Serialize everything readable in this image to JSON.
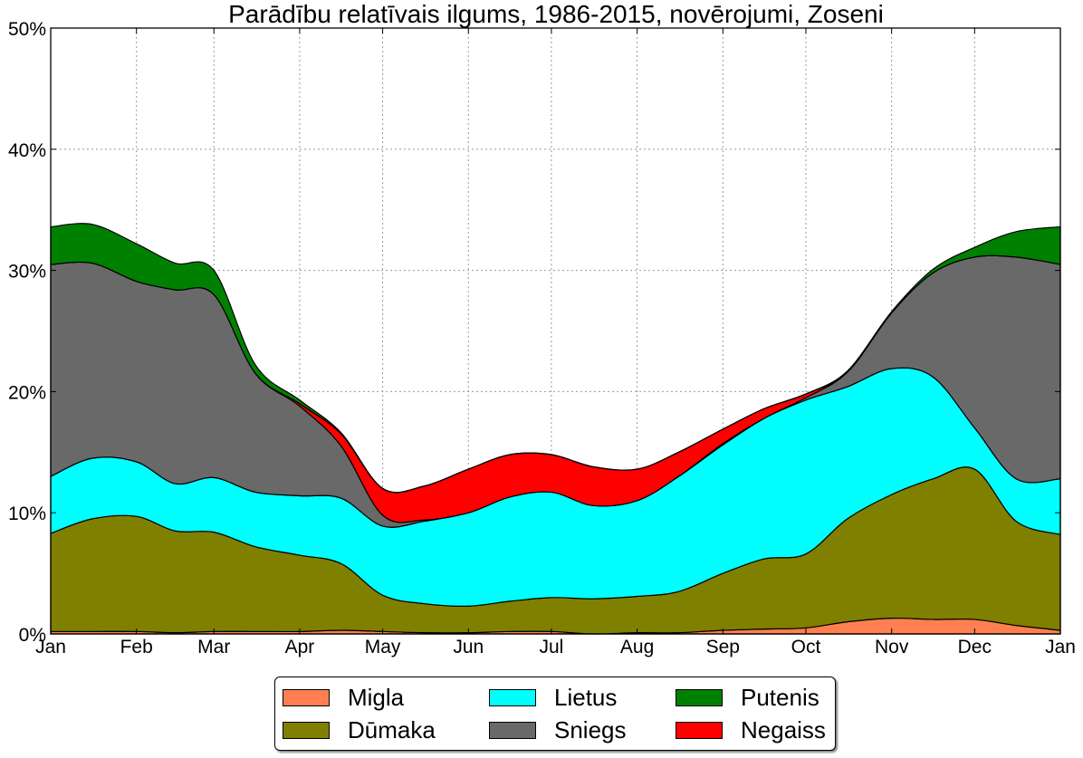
{
  "chart_data": {
    "type": "area",
    "stacked": true,
    "title": "Parādību relatīvais ilgums, 1986-2015, novērojumi, Zoseni",
    "xlabel": "",
    "ylabel": "",
    "ylim": [
      0,
      50
    ],
    "yticks": [
      "0%",
      "10%",
      "20%",
      "30%",
      "40%",
      "50%"
    ],
    "ytick_values": [
      0,
      10,
      20,
      30,
      40,
      50
    ],
    "xticks": [
      "Jan",
      "Feb",
      "Mar",
      "Apr",
      "May",
      "Jun",
      "Jul",
      "Aug",
      "Sep",
      "Oct",
      "Nov",
      "Dec",
      "Jan"
    ],
    "xtick_days": [
      0,
      31,
      59,
      90,
      120,
      151,
      181,
      212,
      243,
      273,
      304,
      334,
      365
    ],
    "xlim_days": [
      0,
      365
    ],
    "grid": true,
    "legend_position": "bottom-center-outside",
    "x_days": [
      0,
      15,
      31,
      45,
      59,
      74,
      90,
      105,
      120,
      135,
      151,
      166,
      181,
      196,
      212,
      227,
      243,
      258,
      273,
      288,
      304,
      319,
      334,
      349,
      365
    ],
    "series": [
      {
        "name": "Migla",
        "color": "#ff7f50",
        "values": [
          0.2,
          0.2,
          0.2,
          0.1,
          0.2,
          0.2,
          0.2,
          0.3,
          0.2,
          0.1,
          0.1,
          0.2,
          0.2,
          0.0,
          0.1,
          0.1,
          0.3,
          0.4,
          0.5,
          1.0,
          1.3,
          1.2,
          1.2,
          0.7,
          0.3
        ]
      },
      {
        "name": "Dūmaka",
        "color": "#808000",
        "values": [
          8.1,
          9.3,
          9.5,
          8.4,
          8.2,
          7.0,
          6.3,
          5.5,
          3.0,
          2.4,
          2.2,
          2.5,
          2.8,
          2.9,
          3.0,
          3.4,
          4.7,
          5.8,
          6.1,
          8.5,
          10.2,
          11.6,
          12.4,
          8.6,
          7.9
        ]
      },
      {
        "name": "Lietus",
        "color": "#00ffff",
        "values": [
          4.7,
          5.0,
          4.5,
          3.9,
          4.5,
          4.5,
          4.9,
          5.4,
          5.7,
          6.8,
          7.7,
          8.6,
          8.7,
          7.7,
          7.9,
          9.5,
          10.6,
          11.6,
          12.7,
          10.9,
          10.4,
          8.4,
          3.4,
          3.5,
          4.6
        ]
      },
      {
        "name": "Sniegs",
        "color": "#696969",
        "values": [
          17.5,
          16.1,
          14.9,
          16.0,
          15.1,
          9.8,
          7.4,
          4.3,
          0.9,
          0.1,
          0.0,
          0.0,
          0.0,
          0.0,
          0.0,
          0.0,
          0.1,
          0.0,
          0.2,
          1.2,
          4.6,
          8.6,
          14.1,
          18.3,
          17.7
        ]
      },
      {
        "name": "Negaiss",
        "color": "#ff0000",
        "values": [
          0.0,
          0.0,
          0.0,
          0.0,
          0.0,
          0.0,
          0.2,
          1.0,
          2.2,
          2.8,
          3.6,
          3.5,
          3.1,
          3.2,
          2.6,
          2.0,
          1.2,
          0.8,
          0.3,
          0.0,
          0.0,
          0.0,
          0.0,
          0.0,
          0.0
        ]
      },
      {
        "name": "Putenis",
        "color": "#008000",
        "values": [
          3.1,
          3.2,
          3.1,
          2.2,
          2.0,
          0.7,
          0.3,
          0.1,
          0.0,
          0.0,
          0.0,
          0.0,
          0.0,
          0.0,
          0.0,
          0.0,
          0.0,
          0.0,
          0.0,
          0.1,
          0.1,
          0.3,
          0.8,
          2.1,
          3.1
        ]
      }
    ]
  }
}
